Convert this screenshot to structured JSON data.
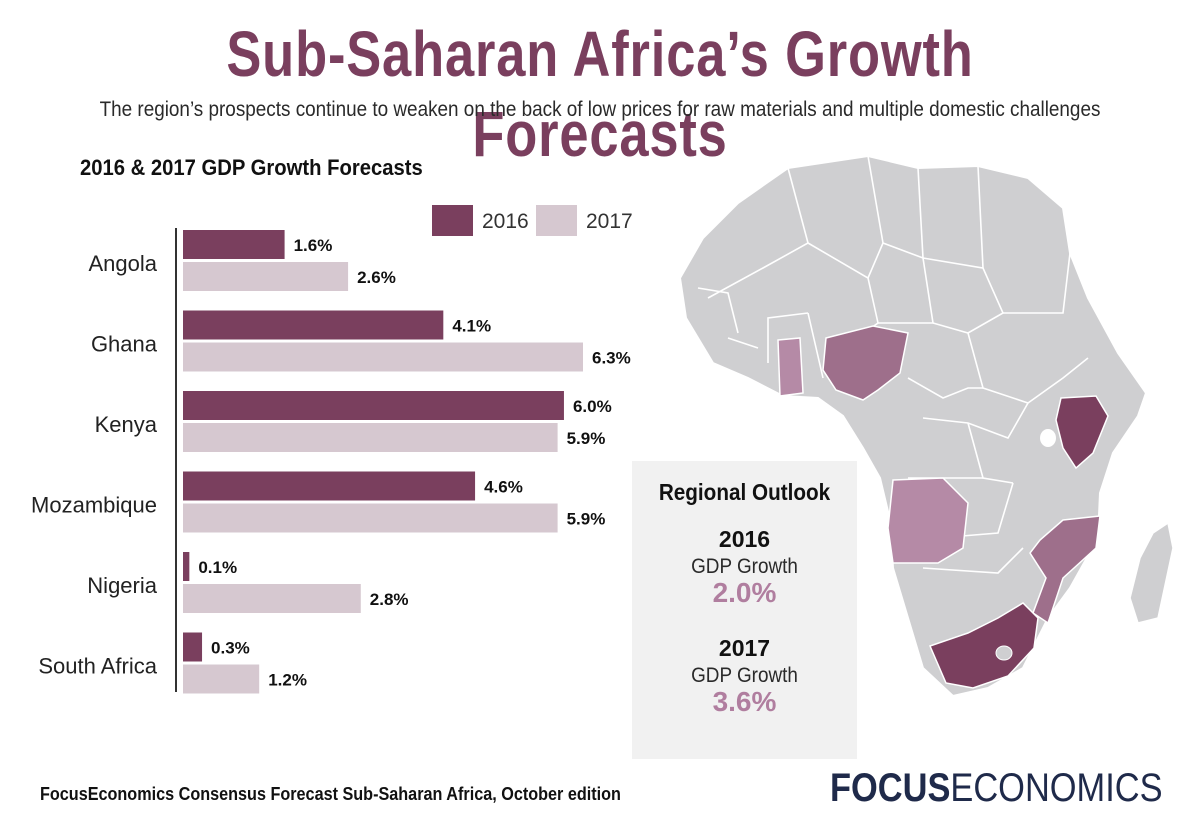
{
  "header": {
    "title": "Sub-Saharan Africa’s Growth Forecasts",
    "subtitle": "The region’s prospects continue to weaken on the back of low prices for raw materials and multiple domestic challenges"
  },
  "chart_data": {
    "type": "bar",
    "orientation": "horizontal",
    "title": "2016 & 2017 GDP Growth Forecasts",
    "categories": [
      "Angola",
      "Ghana",
      "Kenya",
      "Mozambique",
      "Nigeria",
      "South Africa"
    ],
    "series": [
      {
        "name": "2016",
        "color": "#7a3f5e",
        "values": [
          1.6,
          4.1,
          6.0,
          4.6,
          0.1,
          0.3
        ],
        "labels": [
          "1.6%",
          "4.1%",
          "6.0%",
          "4.6%",
          "0.1%",
          "0.3%"
        ]
      },
      {
        "name": "2017",
        "color": "#d6c8d0",
        "values": [
          2.6,
          6.3,
          5.9,
          5.9,
          2.8,
          1.2
        ],
        "labels": [
          "2.6%",
          "6.3%",
          "5.9%",
          "5.9%",
          "2.8%",
          "1.2%"
        ]
      }
    ],
    "xlim": [
      0,
      6.3
    ],
    "legend": "top-right",
    "grid": false
  },
  "outlook": {
    "title": "Regional Outlook",
    "y1": "2016",
    "m1": "GDP Growth",
    "v1": "2.0%",
    "y2": "2017",
    "m2": "GDP Growth",
    "v2": "3.6%"
  },
  "map": {
    "base_color": "#cfcfd1",
    "highlights": {
      "Ghana": "#b58aa6",
      "Nigeria": "#9e6f8b",
      "Kenya": "#7a3f5e",
      "Angola": "#b58aa6",
      "Mozambique": "#9e6f8b",
      "South Africa": "#7a3f5e"
    }
  },
  "footer": {
    "source": "FocusEconomics Consensus Forecast Sub-Saharan Africa, October edition",
    "brand_bold": "FOCUS",
    "brand_light": "ECONOMICS"
  }
}
